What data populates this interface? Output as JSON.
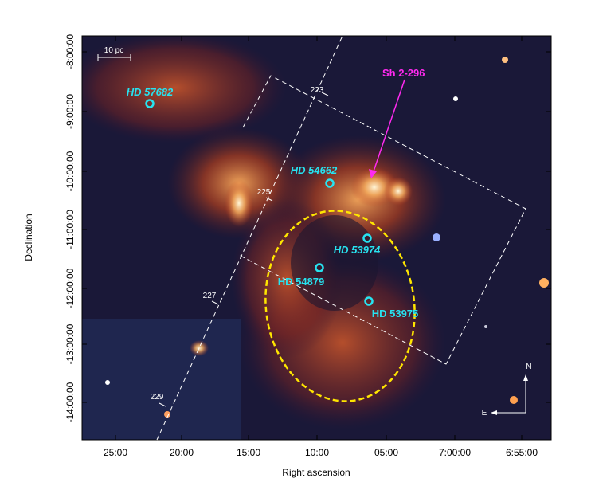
{
  "figure": {
    "x_axis": {
      "label": "Right ascension",
      "ticks": [
        "25:00",
        "20:00",
        "15:00",
        "10:00",
        "05:00",
        "7:00:00",
        "6:55:00"
      ]
    },
    "y_axis": {
      "label": "Declination",
      "ticks": [
        "-8:00:00",
        "-9:00:00",
        "-10:00:00",
        "-11:00:00",
        "-12:00:00",
        "-13:00:00",
        "-14:00:00"
      ]
    },
    "scale_bar": "10 pc",
    "region": "Sh 2-296",
    "stars": [
      "HD 57682",
      "HD 54662",
      "HD 53974",
      "HD 54879",
      "HD 53975"
    ],
    "longitudes": [
      "223",
      "225",
      "227",
      "229"
    ],
    "compass": {
      "north": "N",
      "east": "E"
    }
  }
}
